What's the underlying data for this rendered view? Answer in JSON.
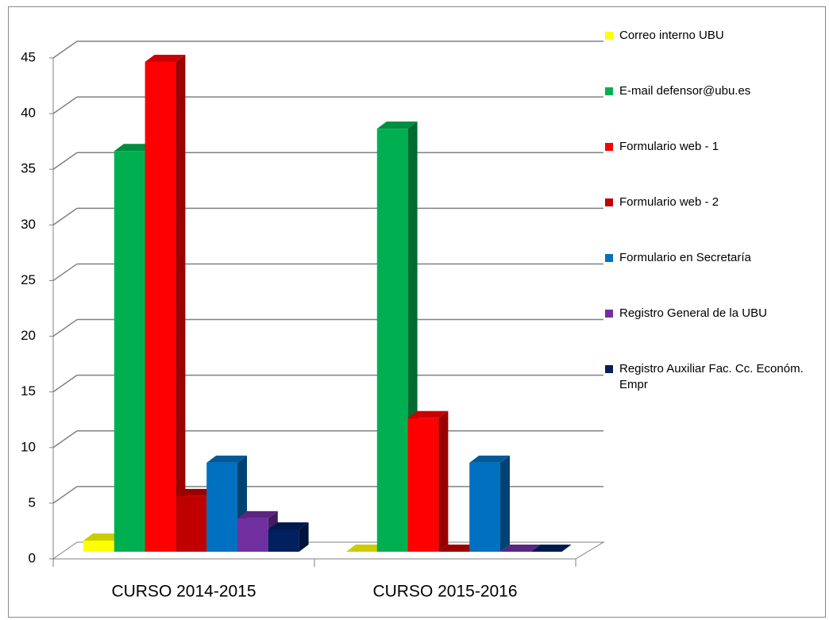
{
  "chart_data": {
    "type": "bar3d",
    "categories": [
      "CURSO 2014-2015",
      "CURSO 2015-2016"
    ],
    "series": [
      {
        "name": "Correo interno UBU",
        "color": "#ffff00",
        "values": [
          1,
          0
        ]
      },
      {
        "name": "E-mail defensor@ubu.es",
        "color": "#00b050",
        "values": [
          36,
          38
        ]
      },
      {
        "name": "Formulario web - 1",
        "color": "#ff0000",
        "values": [
          44,
          12
        ]
      },
      {
        "name": "Formulario web - 2",
        "color": "#c00000",
        "values": [
          5,
          0
        ]
      },
      {
        "name": "Formulario en Secretaría",
        "color": "#0070c0",
        "values": [
          8,
          8
        ]
      },
      {
        "name": "Registro General de la UBU",
        "color": "#7030a0",
        "values": [
          3,
          0
        ]
      },
      {
        "name": "Registro Auxiliar Fac. Cc. Económ. Empr",
        "color": "#002060",
        "values": [
          2,
          0
        ]
      }
    ],
    "ylim": [
      0,
      45
    ],
    "yticks": [
      0,
      5,
      10,
      15,
      20,
      25,
      30,
      35,
      40,
      45
    ],
    "grid": true
  }
}
